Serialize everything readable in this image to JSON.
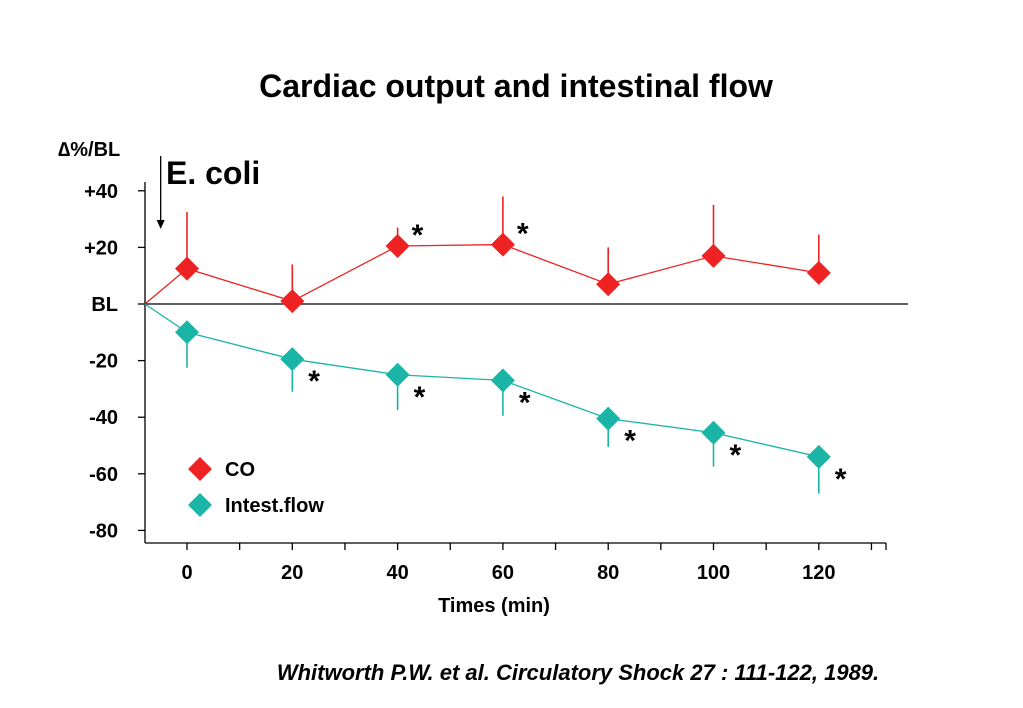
{
  "chart_data": {
    "type": "line",
    "title": "Cardiac output and intestinal flow",
    "ylabel": "∆%/BL",
    "xlabel": "Times (min)",
    "x_ticks": [
      "0",
      "20",
      "40",
      "60",
      "80",
      "100",
      "120"
    ],
    "y_ticks": [
      {
        "value": 40,
        "label": "+40"
      },
      {
        "value": 20,
        "label": "+20"
      },
      {
        "value": 0,
        "label": "BL"
      },
      {
        "value": -20,
        "label": "-20"
      },
      {
        "value": -40,
        "label": "-40"
      },
      {
        "value": -60,
        "label": "-60"
      },
      {
        "value": -80,
        "label": "-80"
      }
    ],
    "xlim": [
      -8,
      133
    ],
    "ylim": [
      -83,
      42
    ],
    "annotation": {
      "label": "E. coli",
      "x": -5
    },
    "series": [
      {
        "name": "CO",
        "color": "#ee2222",
        "points": [
          {
            "x": -8,
            "y": 0
          },
          {
            "x": 0,
            "y": 12.5,
            "err_up": 20,
            "err_down": 0
          },
          {
            "x": 20,
            "y": 1,
            "err_up": 13,
            "err_down": 0
          },
          {
            "x": 40,
            "y": 20.5,
            "err_up": 6.5,
            "err_down": 0,
            "sig": true
          },
          {
            "x": 60,
            "y": 21,
            "err_up": 17,
            "err_down": 0,
            "sig": true
          },
          {
            "x": 80,
            "y": 7,
            "err_up": 13,
            "err_down": 0
          },
          {
            "x": 100,
            "y": 17,
            "err_up": 18,
            "err_down": 0
          },
          {
            "x": 120,
            "y": 11,
            "err_up": 13.5,
            "err_down": 0
          }
        ]
      },
      {
        "name": "Intest.flow",
        "color": "#1ab5a6",
        "points": [
          {
            "x": -8,
            "y": 0
          },
          {
            "x": 0,
            "y": -10,
            "err_up": 0,
            "err_down": 12.5
          },
          {
            "x": 20,
            "y": -19.5,
            "err_up": 0,
            "err_down": 11.5,
            "sig": true
          },
          {
            "x": 40,
            "y": -25,
            "err_up": 0,
            "err_down": 12.5,
            "sig": true
          },
          {
            "x": 60,
            "y": -27,
            "err_up": 0,
            "err_down": 12.5,
            "sig": true
          },
          {
            "x": 80,
            "y": -40.5,
            "err_up": 0,
            "err_down": 10,
            "sig": true
          },
          {
            "x": 100,
            "y": -45.5,
            "err_up": 0,
            "err_down": 12,
            "sig": true
          },
          {
            "x": 120,
            "y": -54,
            "err_up": 0,
            "err_down": 13,
            "sig": true
          }
        ]
      }
    ],
    "significance_marker": "*",
    "legend": "center-left",
    "grid": false
  },
  "citation": "Whitworth P.W. et al. Circulatory Shock 27 : 111-122, 1989."
}
